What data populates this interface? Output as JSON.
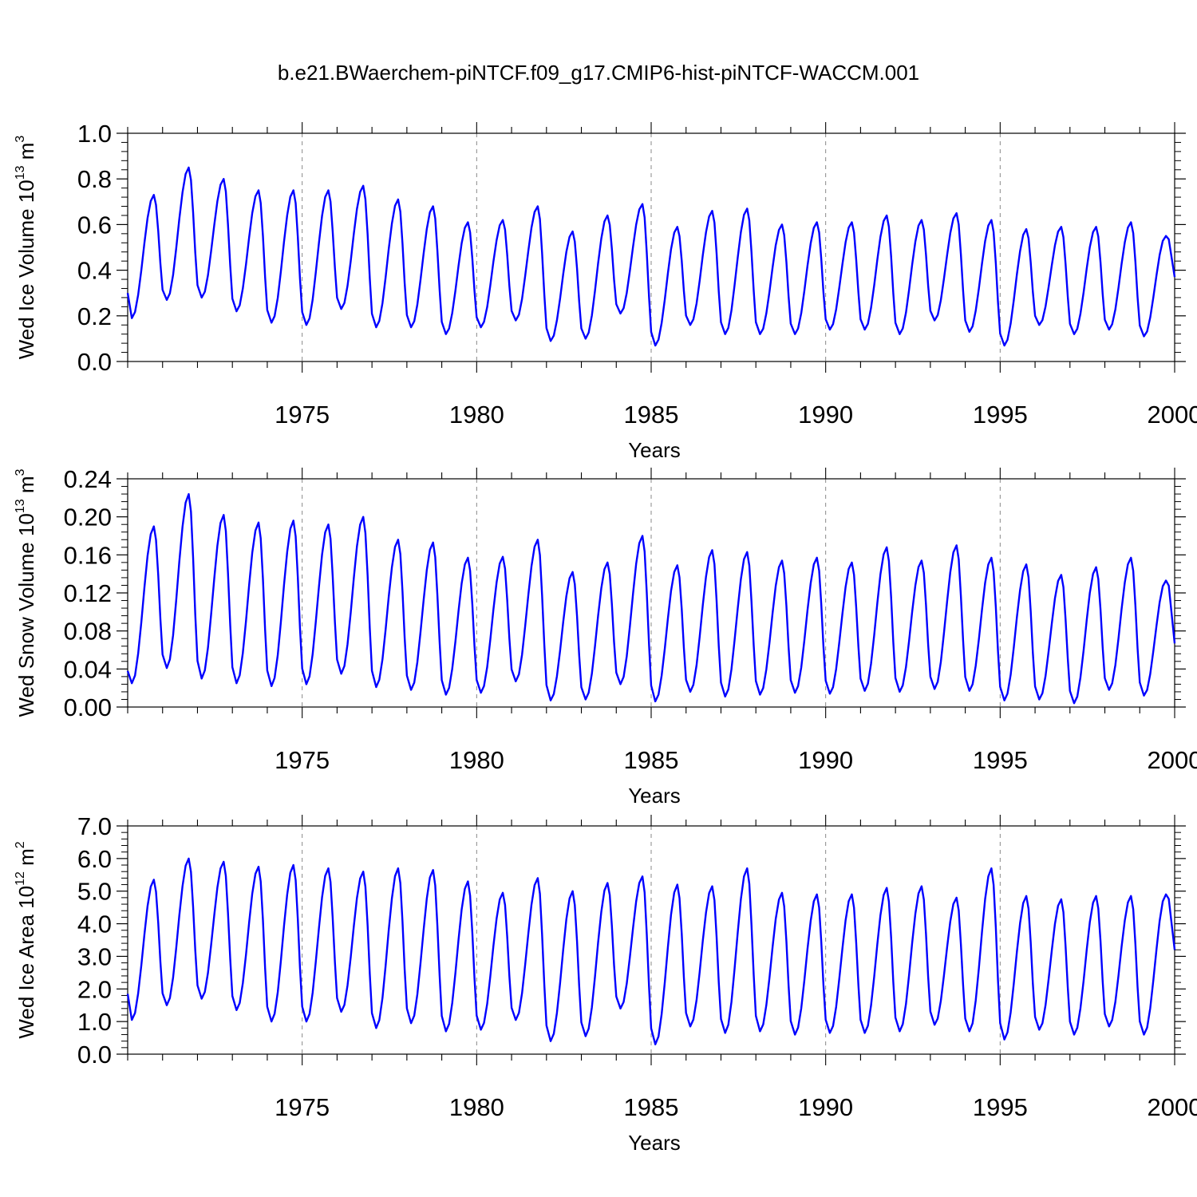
{
  "figure_title": "b.e21.BWaerchem-piNTCF.f09_g17.CMIP6-hist-piNTCF-WACCM.001",
  "colors": {
    "line": "#0000ff",
    "axis": "#000000",
    "gridline": "#888888"
  },
  "chart_data": [
    {
      "type": "line",
      "name": "ice-volume",
      "title": "",
      "xlabel": "Years",
      "ylabel": "Wed Ice Volume 10",
      "ylabel_exp": "13",
      "ylabel_unit": " m",
      "ylabel_unit_exp": "3",
      "xlim": [
        1970.0,
        2000.0
      ],
      "ylim": [
        0.0,
        1.0
      ],
      "yticks": [
        "0.0",
        "0.2",
        "0.4",
        "0.6",
        "0.8",
        "1.0"
      ],
      "ytick_values": [
        0.0,
        0.2,
        0.4,
        0.6,
        0.8,
        1.0
      ],
      "xticks": [
        "1975",
        "1980",
        "1985",
        "1990",
        "1995",
        "2000"
      ],
      "xtick_values": [
        1975,
        1980,
        1985,
        1990,
        1995,
        2000
      ],
      "grid": "dashed vertical at major x ticks",
      "series": [
        {
          "name": "Wed Ice Volume",
          "annual_min": [
            0.19,
            0.27,
            0.28,
            0.22,
            0.17,
            0.16,
            0.23,
            0.15,
            0.15,
            0.12,
            0.15,
            0.18,
            0.09,
            0.1,
            0.21,
            0.07,
            0.16,
            0.12,
            0.12,
            0.12,
            0.14,
            0.14,
            0.12,
            0.18,
            0.13,
            0.07,
            0.16,
            0.12,
            0.14,
            0.11
          ],
          "annual_max": [
            0.73,
            0.85,
            0.8,
            0.75,
            0.75,
            0.75,
            0.77,
            0.71,
            0.68,
            0.61,
            0.62,
            0.68,
            0.57,
            0.64,
            0.69,
            0.59,
            0.66,
            0.67,
            0.6,
            0.61,
            0.61,
            0.64,
            0.62,
            0.65,
            0.62,
            0.58,
            0.59,
            0.59,
            0.61,
            0.55
          ],
          "start": 0.3,
          "end": 0.37
        }
      ]
    },
    {
      "type": "line",
      "name": "snow-volume",
      "title": "",
      "xlabel": "Years",
      "ylabel": "Wed Snow Volume 10",
      "ylabel_exp": "13",
      "ylabel_unit": " m",
      "ylabel_unit_exp": "3",
      "xlim": [
        1970.0,
        2000.0
      ],
      "ylim": [
        0.0,
        0.24
      ],
      "yticks": [
        "0.00",
        "0.04",
        "0.08",
        "0.12",
        "0.16",
        "0.20",
        "0.24"
      ],
      "ytick_values": [
        0.0,
        0.04,
        0.08,
        0.12,
        0.16,
        0.2,
        0.24
      ],
      "xticks": [
        "1975",
        "1980",
        "1985",
        "1990",
        "1995",
        "2000"
      ],
      "xtick_values": [
        1975,
        1980,
        1985,
        1990,
        1995,
        2000
      ],
      "grid": "dashed vertical at major x ticks",
      "series": [
        {
          "name": "Wed Snow Volume",
          "annual_min": [
            0.025,
            0.041,
            0.03,
            0.025,
            0.022,
            0.024,
            0.035,
            0.021,
            0.018,
            0.013,
            0.015,
            0.027,
            0.007,
            0.008,
            0.024,
            0.006,
            0.016,
            0.011,
            0.013,
            0.015,
            0.014,
            0.017,
            0.016,
            0.019,
            0.017,
            0.007,
            0.008,
            0.004,
            0.018,
            0.012
          ],
          "annual_max": [
            0.19,
            0.224,
            0.202,
            0.194,
            0.196,
            0.192,
            0.2,
            0.176,
            0.173,
            0.157,
            0.158,
            0.176,
            0.142,
            0.152,
            0.18,
            0.149,
            0.165,
            0.163,
            0.154,
            0.157,
            0.152,
            0.168,
            0.154,
            0.17,
            0.157,
            0.15,
            0.139,
            0.147,
            0.157,
            0.133
          ],
          "start": 0.038,
          "end": 0.067
        }
      ]
    },
    {
      "type": "line",
      "name": "ice-area",
      "title": "",
      "xlabel": "Years",
      "ylabel": "Wed Ice Area 10",
      "ylabel_exp": "12",
      "ylabel_unit": " m",
      "ylabel_unit_exp": "2",
      "xlim": [
        1970.0,
        2000.0
      ],
      "ylim": [
        0.0,
        7.0
      ],
      "yticks": [
        "0.0",
        "1.0",
        "2.0",
        "3.0",
        "4.0",
        "5.0",
        "6.0",
        "7.0"
      ],
      "ytick_values": [
        0.0,
        1.0,
        2.0,
        3.0,
        4.0,
        5.0,
        6.0,
        7.0
      ],
      "xticks": [
        "1975",
        "1980",
        "1985",
        "1990",
        "1995",
        "2000"
      ],
      "xtick_values": [
        1975,
        1980,
        1985,
        1990,
        1995,
        2000
      ],
      "grid": "dashed vertical at major x ticks",
      "series": [
        {
          "name": "Wed Ice Area",
          "annual_min": [
            1.05,
            1.5,
            1.7,
            1.35,
            1.0,
            1.0,
            1.3,
            0.8,
            0.95,
            0.7,
            0.75,
            1.05,
            0.4,
            0.55,
            1.4,
            0.3,
            0.85,
            0.65,
            0.7,
            0.6,
            0.65,
            0.65,
            0.7,
            0.9,
            0.7,
            0.45,
            0.75,
            0.6,
            0.85,
            0.6
          ],
          "annual_max": [
            5.35,
            6.0,
            5.9,
            5.75,
            5.8,
            5.7,
            5.6,
            5.7,
            5.65,
            5.3,
            4.95,
            5.4,
            5.0,
            5.25,
            5.45,
            5.2,
            5.15,
            5.7,
            4.95,
            4.9,
            4.9,
            5.1,
            5.15,
            4.8,
            5.7,
            4.85,
            4.75,
            4.85,
            4.85,
            4.9
          ],
          "start": 1.85,
          "end": 3.2
        }
      ]
    }
  ]
}
